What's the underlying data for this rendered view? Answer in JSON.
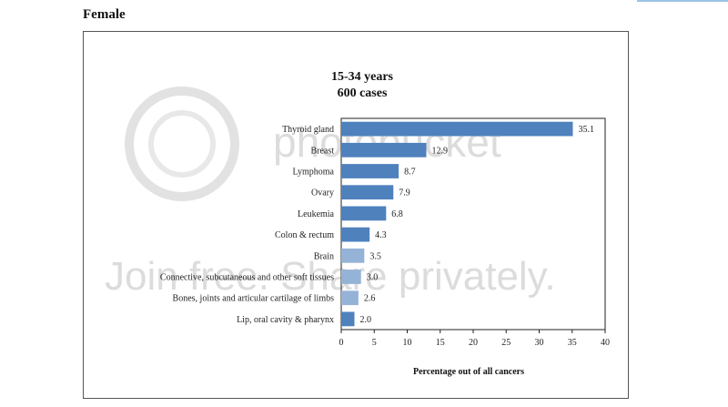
{
  "page": {
    "heading": "Female"
  },
  "watermark": {
    "brand": "photobucket",
    "banner": "Join free. Share privately."
  },
  "chart_data": {
    "type": "bar",
    "orientation": "horizontal",
    "title": [
      "15-34 years",
      "600  cases"
    ],
    "xlabel": "Percentage out of all cancers",
    "ylabel": "",
    "xlim": [
      0,
      40
    ],
    "xticks": [
      0,
      5,
      10,
      15,
      20,
      25,
      30,
      35,
      40
    ],
    "grid": false,
    "categories": [
      "Thyroid gland",
      "Breast",
      "Lymphoma",
      "Ovary",
      "Leukemia",
      "Colon & rectum",
      "Brain",
      "Connective, subcutaneous and other soft tissues",
      "Bones, joints and articular cartilage of limbs",
      "Lip, oral  cavity & pharynx"
    ],
    "values": [
      35.1,
      12.9,
      8.7,
      7.9,
      6.8,
      4.3,
      3.5,
      3.0,
      2.6,
      2.0
    ],
    "value_labels": [
      "35.1",
      "12.9",
      "8.7",
      "7.9",
      "6.8",
      "4.3",
      "3.5",
      "3.0",
      "2.6",
      "2.0"
    ],
    "bar_colors": [
      "#4f81bd",
      "#4f81bd",
      "#4f81bd",
      "#4f81bd",
      "#4f81bd",
      "#4f81bd",
      "#95b3d7",
      "#95b3d7",
      "#95b3d7",
      "#4f81bd"
    ]
  }
}
